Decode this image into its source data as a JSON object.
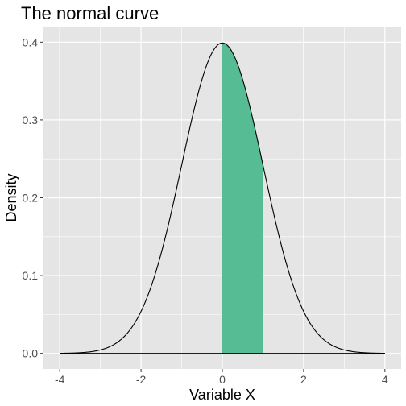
{
  "chart_data": {
    "type": "area",
    "title": "The normal curve",
    "xlabel": "Variable X",
    "ylabel": "Density",
    "xlim": [
      -4,
      4
    ],
    "ylim": [
      0,
      0.4
    ],
    "x_ticks": [
      -4,
      -2,
      0,
      2,
      4
    ],
    "x_tick_labels": [
      "-4",
      "-2",
      "0",
      "2",
      "4"
    ],
    "y_ticks": [
      0,
      0.1,
      0.2,
      0.3,
      0.4
    ],
    "y_tick_labels": [
      "0.0",
      "0.1",
      "0.2",
      "0.3",
      "0.4"
    ],
    "distribution": {
      "name": "standard normal",
      "mean": 0,
      "sd": 1,
      "peak_density": 0.399
    },
    "shaded_region": {
      "x_from": 0,
      "x_to": 1
    },
    "baseline_y": 0,
    "grid": true
  },
  "colors": {
    "panel_background": "#e5e5e5",
    "grid_major": "#ffffff",
    "curve": "#000000",
    "shaded_fill": "#55bc94",
    "tick_label": "#4d4d4d",
    "tick_mark": "#333333"
  }
}
